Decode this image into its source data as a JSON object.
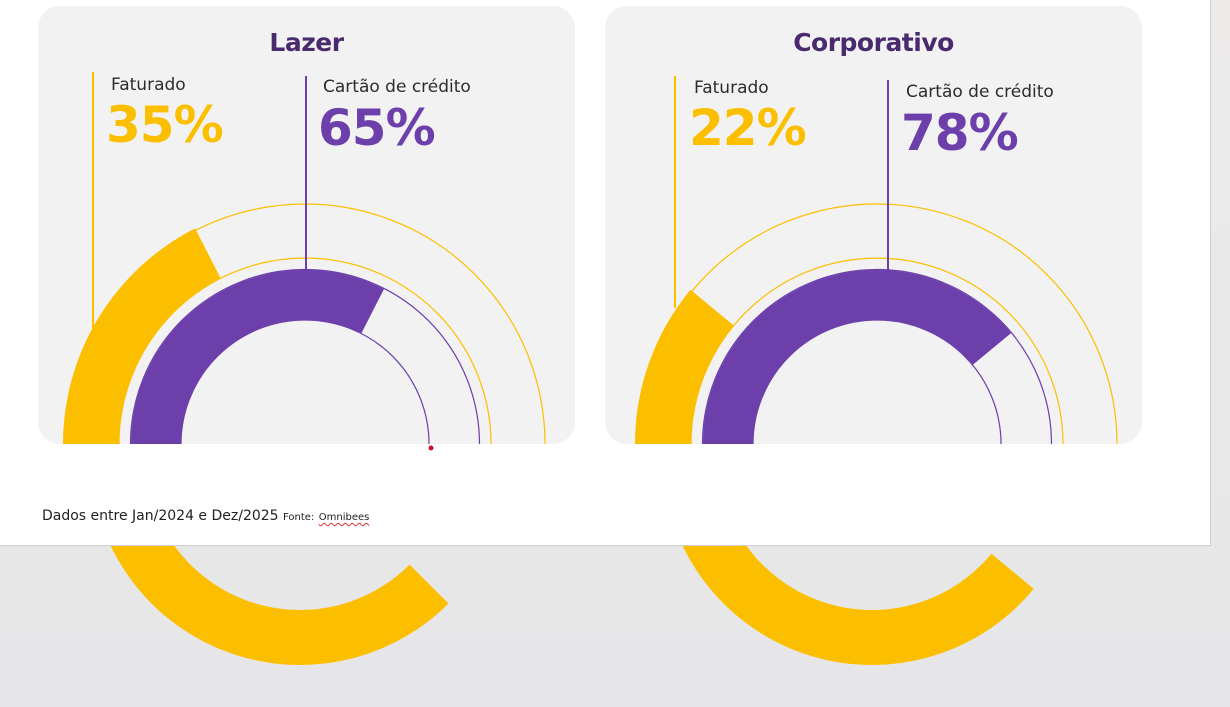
{
  "colors": {
    "gold": "#fcbf00",
    "purple": "#6c3fab",
    "card": "#f2f2f3",
    "title": "#4a2a6e"
  },
  "footer": {
    "text": "Dados entre Jan/2024 e Dez/2025",
    "source_label": "Fonte:",
    "source": "Omnibees"
  },
  "chart_data": [
    {
      "type": "pie",
      "title": "Lazer",
      "series": [
        {
          "name": "Faturado",
          "value": 35,
          "label": "35%",
          "color": "#fcbf00"
        },
        {
          "name": "Cartão de crédito",
          "value": 65,
          "label": "65%",
          "color": "#6c3fab"
        }
      ]
    },
    {
      "type": "pie",
      "title": "Corporativo",
      "series": [
        {
          "name": "Faturado",
          "value": 22,
          "label": "22%",
          "color": "#fcbf00"
        },
        {
          "name": "Cartão de crédito",
          "value": 78,
          "label": "78%",
          "color": "#6c3fab"
        }
      ]
    }
  ]
}
